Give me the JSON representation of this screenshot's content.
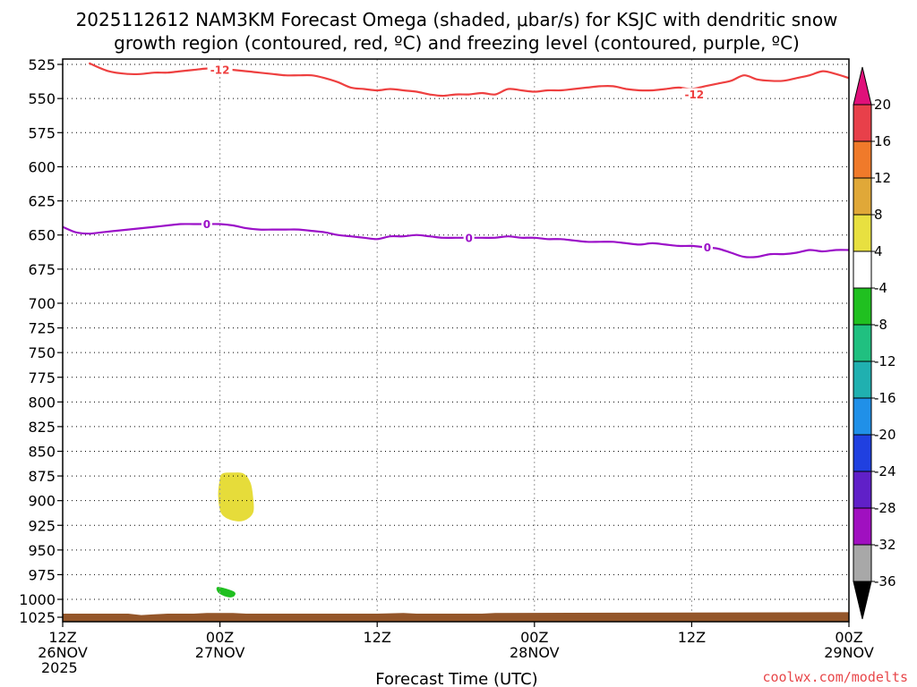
{
  "chart_data": {
    "type": "time-height cross section",
    "title_line1": "2025112612 NAM3KM Forecast Omega (shaded, μbar/s) for KSJC with dendritic snow",
    "title_line2": "growth region (contoured, red, ºC) and freezing level (contoured, purple, ºC)",
    "xlabel": "Forecast Time (UTC)",
    "credit": "coolwx.com/modelts",
    "y_ticks": [
      "525",
      "550",
      "575",
      "600",
      "625",
      "650",
      "675",
      "700",
      "725",
      "750",
      "775",
      "800",
      "825",
      "850",
      "875",
      "900",
      "925",
      "950",
      "975",
      "1000",
      "1025"
    ],
    "y_range": [
      525,
      1025
    ],
    "x_range_hours": [
      0,
      60
    ],
    "x_ticks": [
      {
        "hour": 0,
        "line1": "12Z",
        "line2": "26NOV",
        "line3": "2025"
      },
      {
        "hour": 12,
        "line1": "00Z",
        "line2": "27NOV",
        "line3": ""
      },
      {
        "hour": 24,
        "line1": "12Z",
        "line2": "",
        "line3": ""
      },
      {
        "hour": 36,
        "line1": "00Z",
        "line2": "28NOV",
        "line3": ""
      },
      {
        "hour": 48,
        "line1": "12Z",
        "line2": "",
        "line3": ""
      },
      {
        "hour": 60,
        "line1": "00Z",
        "line2": "29NOV",
        "line3": ""
      }
    ],
    "colorbar": {
      "labels": [
        "20",
        "16",
        "12",
        "8",
        "4",
        "-4",
        "-8",
        "-12",
        "-16",
        "-20",
        "-24",
        "-28",
        "-32",
        "-36"
      ],
      "colors": [
        "#e8404a",
        "#f07a2a",
        "#e0a838",
        "#e8e040",
        "#ffffff",
        "#20c020",
        "#20c080",
        "#20b0b0",
        "#2090e8",
        "#2040e0",
        "#6020c8",
        "#a010c0",
        "#a8a8a8"
      ],
      "top_arrow_color": "#e0107a",
      "bottom_arrow_color": "#000000"
    },
    "series": [
      {
        "name": "-12 C isotherm (dendritic growth)",
        "color": "#ee4040",
        "label": "-12",
        "label_points": [
          [
            12,
            529
          ],
          [
            48.2,
            547
          ]
        ],
        "points": [
          [
            2,
            524
          ],
          [
            3.5,
            530
          ],
          [
            5,
            532
          ],
          [
            6,
            532
          ],
          [
            7,
            531
          ],
          [
            8,
            531
          ],
          [
            9,
            530
          ],
          [
            10,
            529
          ],
          [
            11,
            528
          ],
          [
            12,
            528
          ],
          [
            13,
            529
          ],
          [
            14,
            530
          ],
          [
            15,
            531
          ],
          [
            16,
            532
          ],
          [
            17,
            533
          ],
          [
            18,
            533
          ],
          [
            19,
            533
          ],
          [
            20,
            535
          ],
          [
            21,
            538
          ],
          [
            22,
            542
          ],
          [
            23,
            543
          ],
          [
            24,
            544
          ],
          [
            25,
            543
          ],
          [
            26,
            544
          ],
          [
            27,
            545
          ],
          [
            28,
            547
          ],
          [
            29,
            548
          ],
          [
            30,
            547
          ],
          [
            31,
            547
          ],
          [
            32,
            546
          ],
          [
            33,
            547
          ],
          [
            34,
            543
          ],
          [
            35,
            544
          ],
          [
            36,
            545
          ],
          [
            37,
            544
          ],
          [
            38,
            544
          ],
          [
            39,
            543
          ],
          [
            40,
            542
          ],
          [
            41,
            541
          ],
          [
            42,
            541
          ],
          [
            43,
            543
          ],
          [
            44,
            544
          ],
          [
            45,
            544
          ],
          [
            46,
            543
          ],
          [
            47,
            542
          ],
          [
            48,
            543
          ],
          [
            49,
            541
          ],
          [
            50,
            539
          ],
          [
            51,
            537
          ],
          [
            52,
            533
          ],
          [
            53,
            536
          ],
          [
            54,
            537
          ],
          [
            55,
            537
          ],
          [
            56,
            535
          ],
          [
            57,
            533
          ],
          [
            58,
            530
          ],
          [
            59,
            532
          ],
          [
            60,
            535
          ]
        ]
      },
      {
        "name": "0 C isotherm (freezing level)",
        "color": "#9b10c8",
        "label": "0",
        "label_points": [
          [
            11,
            642
          ],
          [
            31,
            652
          ],
          [
            49.2,
            659
          ]
        ],
        "points": [
          [
            0,
            644
          ],
          [
            1,
            648
          ],
          [
            2,
            649
          ],
          [
            3,
            648
          ],
          [
            4,
            647
          ],
          [
            5,
            646
          ],
          [
            6,
            645
          ],
          [
            7,
            644
          ],
          [
            8,
            643
          ],
          [
            9,
            642
          ],
          [
            10,
            642
          ],
          [
            11,
            642
          ],
          [
            12,
            642
          ],
          [
            13,
            643
          ],
          [
            14,
            645
          ],
          [
            15,
            646
          ],
          [
            16,
            646
          ],
          [
            17,
            646
          ],
          [
            18,
            646
          ],
          [
            19,
            647
          ],
          [
            20,
            648
          ],
          [
            21,
            650
          ],
          [
            22,
            651
          ],
          [
            23,
            652
          ],
          [
            24,
            653
          ],
          [
            25,
            651
          ],
          [
            26,
            651
          ],
          [
            27,
            650
          ],
          [
            28,
            651
          ],
          [
            29,
            652
          ],
          [
            30,
            652
          ],
          [
            31,
            652
          ],
          [
            32,
            652
          ],
          [
            33,
            652
          ],
          [
            34,
            651
          ],
          [
            35,
            652
          ],
          [
            36,
            652
          ],
          [
            37,
            653
          ],
          [
            38,
            653
          ],
          [
            39,
            654
          ],
          [
            40,
            655
          ],
          [
            41,
            655
          ],
          [
            42,
            655
          ],
          [
            43,
            656
          ],
          [
            44,
            657
          ],
          [
            45,
            656
          ],
          [
            46,
            657
          ],
          [
            47,
            658
          ],
          [
            48,
            658
          ],
          [
            49,
            659
          ],
          [
            50,
            660
          ],
          [
            51,
            663
          ],
          [
            52,
            666
          ],
          [
            53,
            666
          ],
          [
            54,
            664
          ],
          [
            55,
            664
          ],
          [
            56,
            663
          ],
          [
            57,
            661
          ],
          [
            58,
            662
          ],
          [
            59,
            661
          ],
          [
            60,
            661
          ]
        ]
      }
    ],
    "shaded_regions": [
      {
        "name": "positive omega 4-8 μbar/s",
        "range": "4 to 8",
        "color": "#e6dc3a",
        "points": [
          [
            12.2,
            873
          ],
          [
            13,
            872
          ],
          [
            13.8,
            873
          ],
          [
            14.3,
            882
          ],
          [
            14.5,
            897
          ],
          [
            14.5,
            912
          ],
          [
            13.8,
            920
          ],
          [
            12.8,
            919
          ],
          [
            12.1,
            912
          ],
          [
            11.9,
            895
          ],
          [
            12,
            880
          ]
        ]
      },
      {
        "name": "negative omega -4 to -8 μbar/s",
        "range": "-4 to -8",
        "color": "#20c020",
        "points": [
          [
            11.8,
            988
          ],
          [
            12.3,
            989
          ],
          [
            13.1,
            993
          ],
          [
            13,
            997
          ],
          [
            12.5,
            997
          ],
          [
            11.9,
            993
          ]
        ]
      }
    ],
    "terrain": {
      "name": "surface",
      "color": "#94562a",
      "bottom": 1031,
      "points": [
        [
          0,
          1020
        ],
        [
          5,
          1020
        ],
        [
          6,
          1022
        ],
        [
          7,
          1021
        ],
        [
          8,
          1020
        ],
        [
          10,
          1020
        ],
        [
          11,
          1019
        ],
        [
          13,
          1019
        ],
        [
          14,
          1020
        ],
        [
          24,
          1020
        ],
        [
          26,
          1019
        ],
        [
          27,
          1020
        ],
        [
          32,
          1020
        ],
        [
          33,
          1019
        ],
        [
          59,
          1018
        ],
        [
          60,
          1018
        ]
      ]
    }
  }
}
